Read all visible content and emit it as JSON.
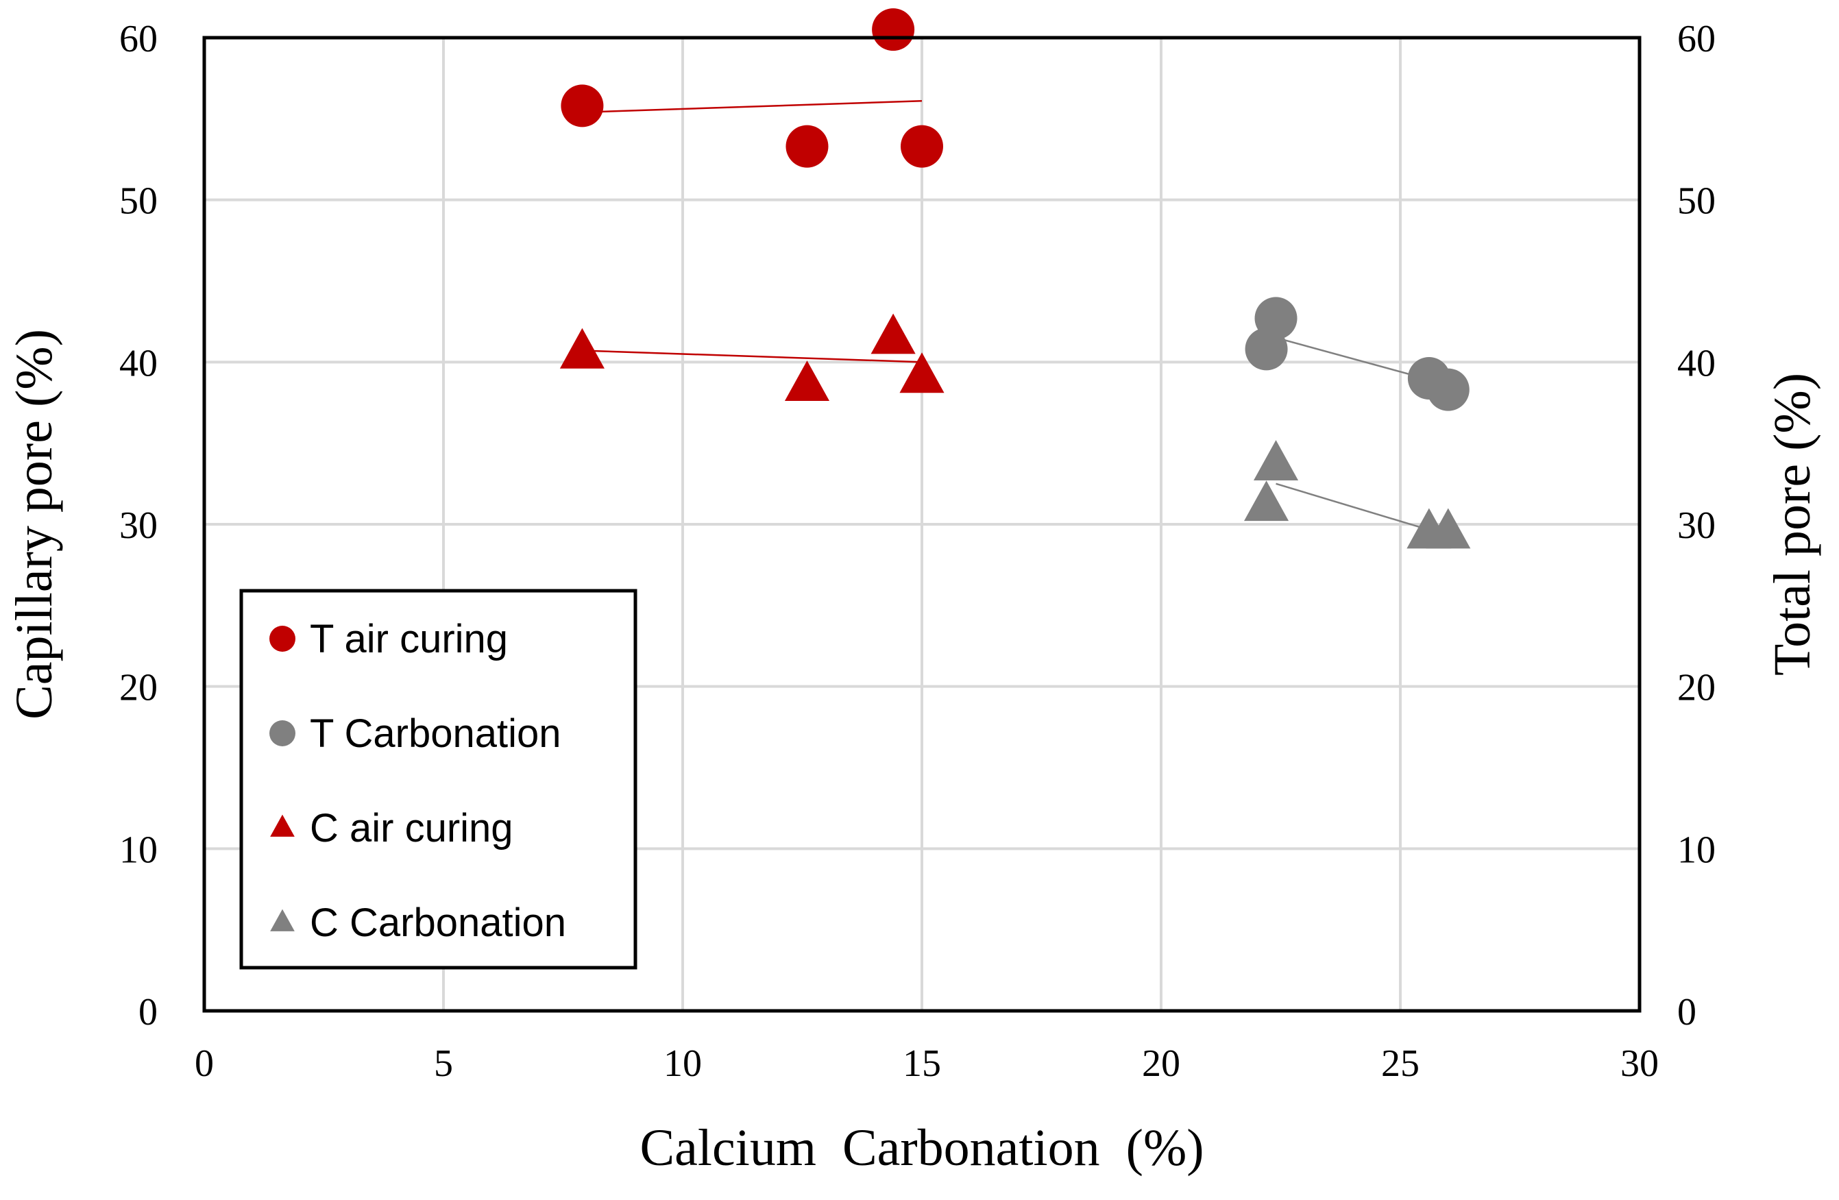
{
  "chart_data": {
    "type": "scatter",
    "xlabel": "Calcium  Carbonation  (%)",
    "ylabel": "Capillary pore (%)",
    "y2label": "Total pore (%)",
    "xlim": [
      0,
      30
    ],
    "ylim": [
      0,
      60
    ],
    "y2lim": [
      0,
      60
    ],
    "xticks": [
      0,
      5,
      10,
      15,
      20,
      25,
      30
    ],
    "yticks": [
      0,
      10,
      20,
      30,
      40,
      50,
      60
    ],
    "y2ticks": [
      0,
      10,
      20,
      30,
      40,
      50,
      60
    ],
    "grid": true,
    "legend_position": "bottom-left",
    "series": [
      {
        "name": "T air curing",
        "marker": "circle",
        "color": "#C00000",
        "points": [
          [
            7.9,
            55.8
          ],
          [
            12.6,
            53.3
          ],
          [
            14.4,
            60.5
          ],
          [
            15.0,
            53.3
          ]
        ],
        "trendline": [
          [
            7.9,
            55.4
          ],
          [
            15.0,
            56.1
          ]
        ]
      },
      {
        "name": "T Carbonation",
        "marker": "circle",
        "color": "#808080",
        "points": [
          [
            22.2,
            40.8
          ],
          [
            22.4,
            42.7
          ],
          [
            25.6,
            39.0
          ],
          [
            26.0,
            38.3
          ]
        ],
        "trendline": [
          [
            22.4,
            41.5
          ],
          [
            26.0,
            38.6
          ]
        ]
      },
      {
        "name": "C air curing",
        "marker": "triangle",
        "color": "#C00000",
        "points": [
          [
            7.9,
            40.6
          ],
          [
            12.6,
            38.6
          ],
          [
            14.4,
            41.5
          ],
          [
            15.0,
            39.1
          ]
        ],
        "trendline": [
          [
            8.0,
            40.7
          ],
          [
            15.0,
            40.0
          ]
        ]
      },
      {
        "name": "C Carbonation",
        "marker": "triangle",
        "color": "#808080",
        "points": [
          [
            22.2,
            31.2
          ],
          [
            22.4,
            33.7
          ],
          [
            25.6,
            29.5
          ],
          [
            26.0,
            29.5
          ]
        ],
        "trendline": [
          [
            22.4,
            32.5
          ],
          [
            26.0,
            29.3
          ]
        ]
      }
    ]
  }
}
